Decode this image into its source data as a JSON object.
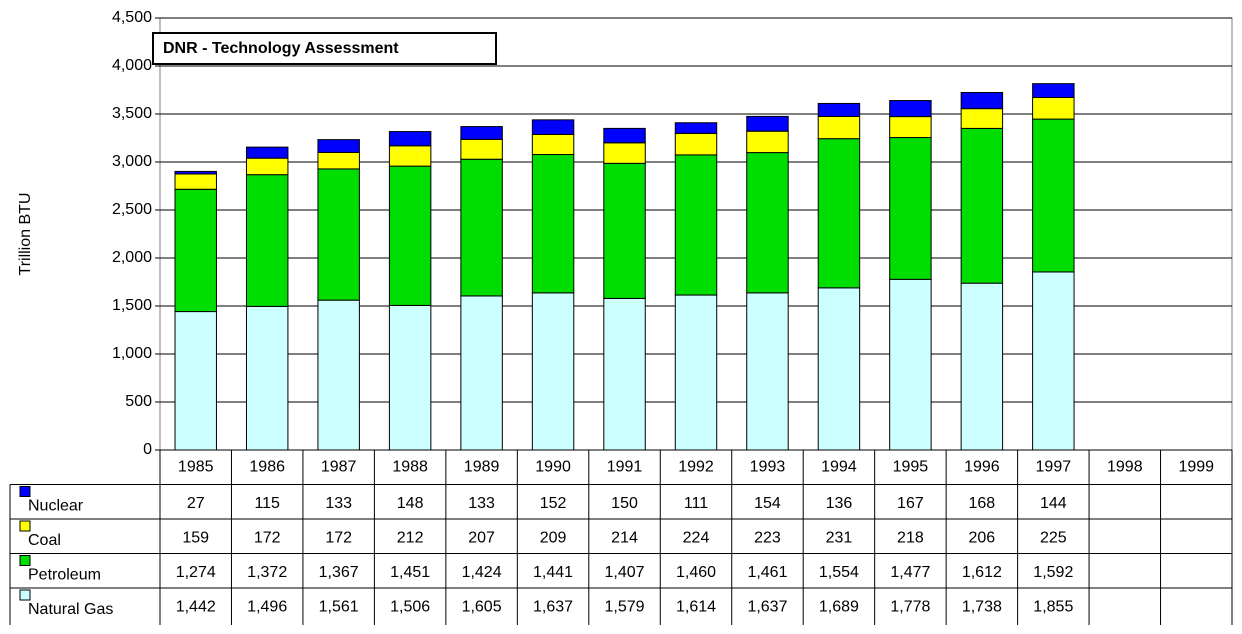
{
  "chart_data": {
    "type": "stacked_bar",
    "title": "DNR - Technology Assessment",
    "y_axis_label": "Trillion BTU",
    "categories": [
      "1985",
      "1986",
      "1987",
      "1988",
      "1989",
      "1990",
      "1991",
      "1992",
      "1993",
      "1994",
      "1995",
      "1996",
      "1997",
      "1998",
      "1999"
    ],
    "series": [
      {
        "name": "Nuclear",
        "color": "#0000ff",
        "values": [
          27,
          115,
          133,
          148,
          133,
          152,
          150,
          111,
          154,
          136,
          167,
          168,
          144,
          null,
          null
        ],
        "value_labels": [
          "27",
          "115",
          "133",
          "148",
          "133",
          "152",
          "150",
          "111",
          "154",
          "136",
          "167",
          "168",
          "144",
          null,
          null
        ]
      },
      {
        "name": "Coal",
        "color": "#ffff00",
        "values": [
          159,
          172,
          172,
          212,
          207,
          209,
          214,
          224,
          223,
          231,
          218,
          206,
          225,
          null,
          null
        ],
        "value_labels": [
          "159",
          "172",
          "172",
          "212",
          "207",
          "209",
          "214",
          "224",
          "223",
          "231",
          "218",
          "206",
          "225",
          null,
          null
        ]
      },
      {
        "name": "Petroleum",
        "color": "#00dd00",
        "values": [
          1274,
          1372,
          1367,
          1451,
          1424,
          1441,
          1407,
          1460,
          1461,
          1554,
          1477,
          1612,
          1592,
          null,
          null
        ],
        "value_labels": [
          "1,274",
          "1,372",
          "1,367",
          "1,451",
          "1,424",
          "1,441",
          "1,407",
          "1,460",
          "1,461",
          "1,554",
          "1,477",
          "1,612",
          "1,592",
          null,
          null
        ]
      },
      {
        "name": "Natural Gas",
        "color": "#ccffff",
        "values": [
          1442,
          1496,
          1561,
          1506,
          1605,
          1637,
          1579,
          1614,
          1637,
          1689,
          1778,
          1738,
          1855,
          null,
          null
        ],
        "value_labels": [
          "1,442",
          "1,496",
          "1,561",
          "1,506",
          "1,605",
          "1,637",
          "1,579",
          "1,614",
          "1,637",
          "1,689",
          "1,778",
          "1,738",
          "1,855",
          null,
          null
        ]
      }
    ],
    "ylim": [
      0,
      4500
    ],
    "yticks": [
      0,
      500,
      {
        "value": 1000,
        "label": "1,000"
      },
      {
        "value": 1500,
        "label": "1,500"
      },
      {
        "value": 2000,
        "label": "2,000"
      },
      {
        "value": 2500,
        "label": "2,500"
      },
      {
        "value": 3000,
        "label": "3,000"
      },
      {
        "value": 3500,
        "label": "3,500"
      },
      {
        "value": 4000,
        "label": "4,000"
      },
      {
        "value": 4500,
        "label": "4,500"
      }
    ],
    "grid": true
  }
}
